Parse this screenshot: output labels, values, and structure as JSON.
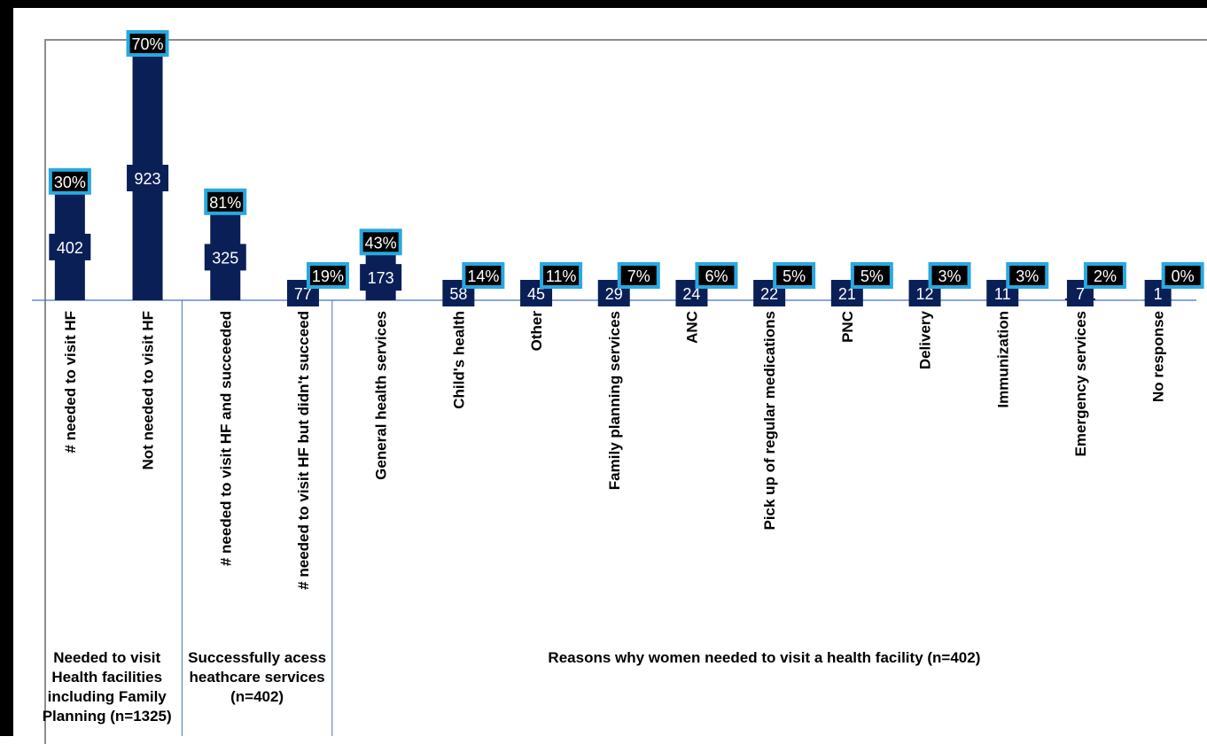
{
  "chart_data": {
    "type": "bar",
    "categories": [
      "# needed to visit HF",
      "Not needed to visit HF",
      "# needed to visit HF and succeeded",
      "# needed to visit HF but didn't succeed",
      "General health services",
      "Child's health",
      "Other",
      "Family planning services",
      "ANC",
      "Pick up of regular medications",
      "PNC",
      "Delivery",
      "Immunization",
      "Emergency services",
      "No response"
    ],
    "values": [
      402,
      923,
      325,
      77,
      173,
      58,
      45,
      29,
      24,
      22,
      21,
      12,
      11,
      7,
      1
    ],
    "value_labels": [
      "402",
      "923",
      "325",
      "77",
      "173",
      "58",
      "45",
      "29",
      "24",
      "22",
      "21",
      "12",
      "11",
      "7",
      "1"
    ],
    "percent_labels": [
      "30%",
      "70%",
      "81%",
      "19%",
      "43%",
      "14%",
      "11%",
      "7%",
      "6%",
      "5%",
      "5%",
      "3%",
      "3%",
      "2%",
      "0%"
    ],
    "groups": [
      {
        "label_lines": [
          "Needed to visit",
          "Health facilities",
          "including Family",
          "Planning (n=1325)"
        ],
        "start": 0,
        "end": 1
      },
      {
        "label_lines": [
          "Successfully acess",
          "heathcare services",
          "(n=402)"
        ],
        "start": 2,
        "end": 3
      },
      {
        "label_lines": [
          "Reasons why women needed to visit a health facility (n=402)"
        ],
        "start": 4,
        "end": 14
      }
    ],
    "title": "",
    "xlabel": "",
    "ylabel": "",
    "ylim": [
      0,
      1000
    ],
    "grid": false,
    "legend": "none",
    "colors": {
      "bar": "#0b1f57",
      "value_label_bg": "#0b1f57",
      "value_label_text": "#ffffff",
      "pct_label_bg": "#000000",
      "pct_label_border": "#29a8e0",
      "pct_label_text": "#ffffff",
      "axis_line": "#4a72c4",
      "divider_line": "#4a72c4"
    }
  }
}
